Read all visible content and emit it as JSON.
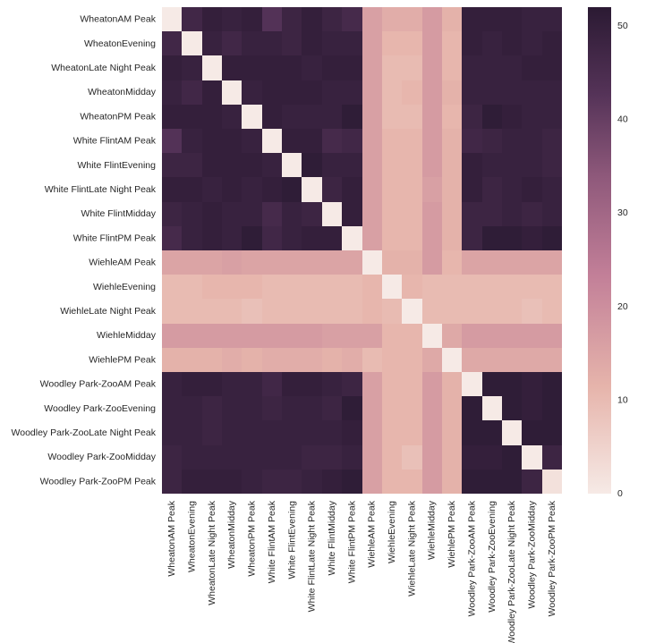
{
  "chart_data": {
    "type": "heatmap",
    "title": "",
    "xlabel": "",
    "ylabel": "",
    "row_labels": [
      "WheatonAM Peak",
      "WheatonEvening",
      "WheatonLate Night Peak",
      "WheatonMidday",
      "WheatonPM Peak",
      "White FlintAM Peak",
      "White FlintEvening",
      "White FlintLate Night Peak",
      "White FlintMidday",
      "White FlintPM Peak",
      "WiehleAM Peak",
      "WiehleEvening",
      "WiehleLate Night Peak",
      "WiehleMidday",
      "WiehlePM Peak",
      "Woodley Park-ZooAM Peak",
      "Woodley Park-ZooEvening",
      "Woodley Park-ZooLate Night Peak",
      "Woodley Park-ZooMidday",
      "Woodley Park-ZooPM Peak"
    ],
    "col_labels": [
      "WheatonAM Peak",
      "WheatonEvening",
      "WheatonLate Night Peak",
      "WheatonMidday",
      "WheatonPM Peak",
      "White FlintAM Peak",
      "White FlintEvening",
      "White FlintLate Night Peak",
      "White FlintMidday",
      "White FlintPM Peak",
      "WiehleAM Peak",
      "WiehleEvening",
      "WiehleLate Night Peak",
      "WiehleMidday",
      "WiehlePM Peak",
      "Woodley Park-ZooAM Peak",
      "Woodley Park-ZooEvening",
      "Woodley Park-ZooLate Night Peak",
      "Woodley Park-ZooMidday",
      "Woodley Park-ZooPM Peak"
    ],
    "values": [
      [
        0,
        47,
        50,
        49,
        50,
        43,
        48,
        50,
        48,
        46,
        16,
        13,
        13,
        17,
        12,
        50,
        50,
        50,
        49,
        49
      ],
      [
        47,
        0,
        49,
        47,
        49,
        49,
        48,
        50,
        49,
        49,
        16,
        11,
        11,
        17,
        11,
        50,
        49,
        50,
        49,
        50
      ],
      [
        50,
        49,
        0,
        50,
        50,
        50,
        50,
        49,
        50,
        50,
        16,
        10,
        10,
        17,
        11,
        49,
        49,
        49,
        50,
        50
      ],
      [
        49,
        47,
        50,
        0,
        49,
        50,
        50,
        50,
        49,
        49,
        16,
        10,
        11,
        17,
        12,
        49,
        49,
        49,
        49,
        49
      ],
      [
        50,
        50,
        50,
        49,
        0,
        50,
        49,
        49,
        49,
        51,
        16,
        10,
        10,
        17,
        11,
        48,
        51,
        50,
        49,
        49
      ],
      [
        43,
        49,
        50,
        50,
        49,
        0,
        50,
        50,
        46,
        47,
        16,
        11,
        11,
        17,
        12,
        47,
        48,
        49,
        49,
        48
      ],
      [
        48,
        48,
        50,
        50,
        50,
        49,
        0,
        51,
        49,
        49,
        16,
        11,
        11,
        17,
        12,
        50,
        49,
        49,
        49,
        48
      ],
      [
        50,
        50,
        49,
        50,
        49,
        50,
        51,
        0,
        48,
        50,
        16,
        11,
        11,
        16,
        12,
        50,
        48,
        49,
        50,
        49
      ],
      [
        48,
        49,
        50,
        49,
        49,
        46,
        49,
        48,
        0,
        50,
        16,
        11,
        11,
        17,
        12,
        48,
        48,
        49,
        48,
        49
      ],
      [
        46,
        49,
        50,
        49,
        51,
        47,
        49,
        50,
        50,
        0,
        16,
        11,
        11,
        17,
        12,
        48,
        51,
        51,
        50,
        51
      ],
      [
        15,
        15,
        15,
        16,
        15,
        15,
        15,
        15,
        15,
        15,
        0,
        12,
        12,
        17,
        11,
        15,
        15,
        15,
        15,
        15
      ],
      [
        10,
        10,
        11,
        11,
        11,
        10,
        10,
        10,
        10,
        10,
        11,
        0,
        11,
        10,
        10,
        10,
        10,
        10,
        10,
        10
      ],
      [
        10,
        10,
        10,
        10,
        9,
        10,
        10,
        10,
        10,
        10,
        11,
        10,
        0,
        10,
        10,
        10,
        10,
        10,
        9,
        10
      ],
      [
        17,
        17,
        17,
        17,
        17,
        17,
        17,
        17,
        16,
        16,
        16,
        11,
        11,
        0,
        14,
        17,
        17,
        17,
        17,
        17
      ],
      [
        12,
        12,
        12,
        13,
        12,
        13,
        13,
        13,
        12,
        13,
        10,
        11,
        11,
        14,
        0,
        14,
        14,
        14,
        14,
        14
      ],
      [
        49,
        50,
        50,
        49,
        49,
        47,
        50,
        50,
        49,
        48,
        16,
        11,
        11,
        17,
        12,
        0,
        51,
        51,
        50,
        51
      ],
      [
        49,
        49,
        48,
        49,
        49,
        48,
        49,
        49,
        48,
        51,
        16,
        11,
        11,
        17,
        12,
        51,
        0,
        51,
        50,
        51
      ],
      [
        49,
        49,
        48,
        49,
        49,
        49,
        49,
        49,
        49,
        50,
        16,
        11,
        11,
        17,
        12,
        51,
        51,
        0,
        51,
        51
      ],
      [
        48,
        49,
        49,
        49,
        49,
        49,
        49,
        48,
        48,
        49,
        16,
        11,
        9,
        17,
        12,
        50,
        50,
        51,
        0,
        48
      ],
      [
        48,
        50,
        50,
        50,
        49,
        48,
        48,
        49,
        50,
        51,
        16,
        11,
        11,
        17,
        12,
        51,
        51,
        51,
        48,
        2
      ]
    ],
    "vmin": 0,
    "vmax": 52,
    "colorbar": {
      "ticks": [
        0,
        10,
        20,
        30,
        40,
        50
      ],
      "colormap_stops": [
        {
          "v": 0,
          "color": "#f6eae6"
        },
        {
          "v": 0.22,
          "color": "#e6b4ab"
        },
        {
          "v": 0.45,
          "color": "#c27f98"
        },
        {
          "v": 0.65,
          "color": "#8f597b"
        },
        {
          "v": 0.82,
          "color": "#553358"
        },
        {
          "v": 1,
          "color": "#2b1a33"
        }
      ]
    },
    "legend_position": "right",
    "grid": false
  }
}
